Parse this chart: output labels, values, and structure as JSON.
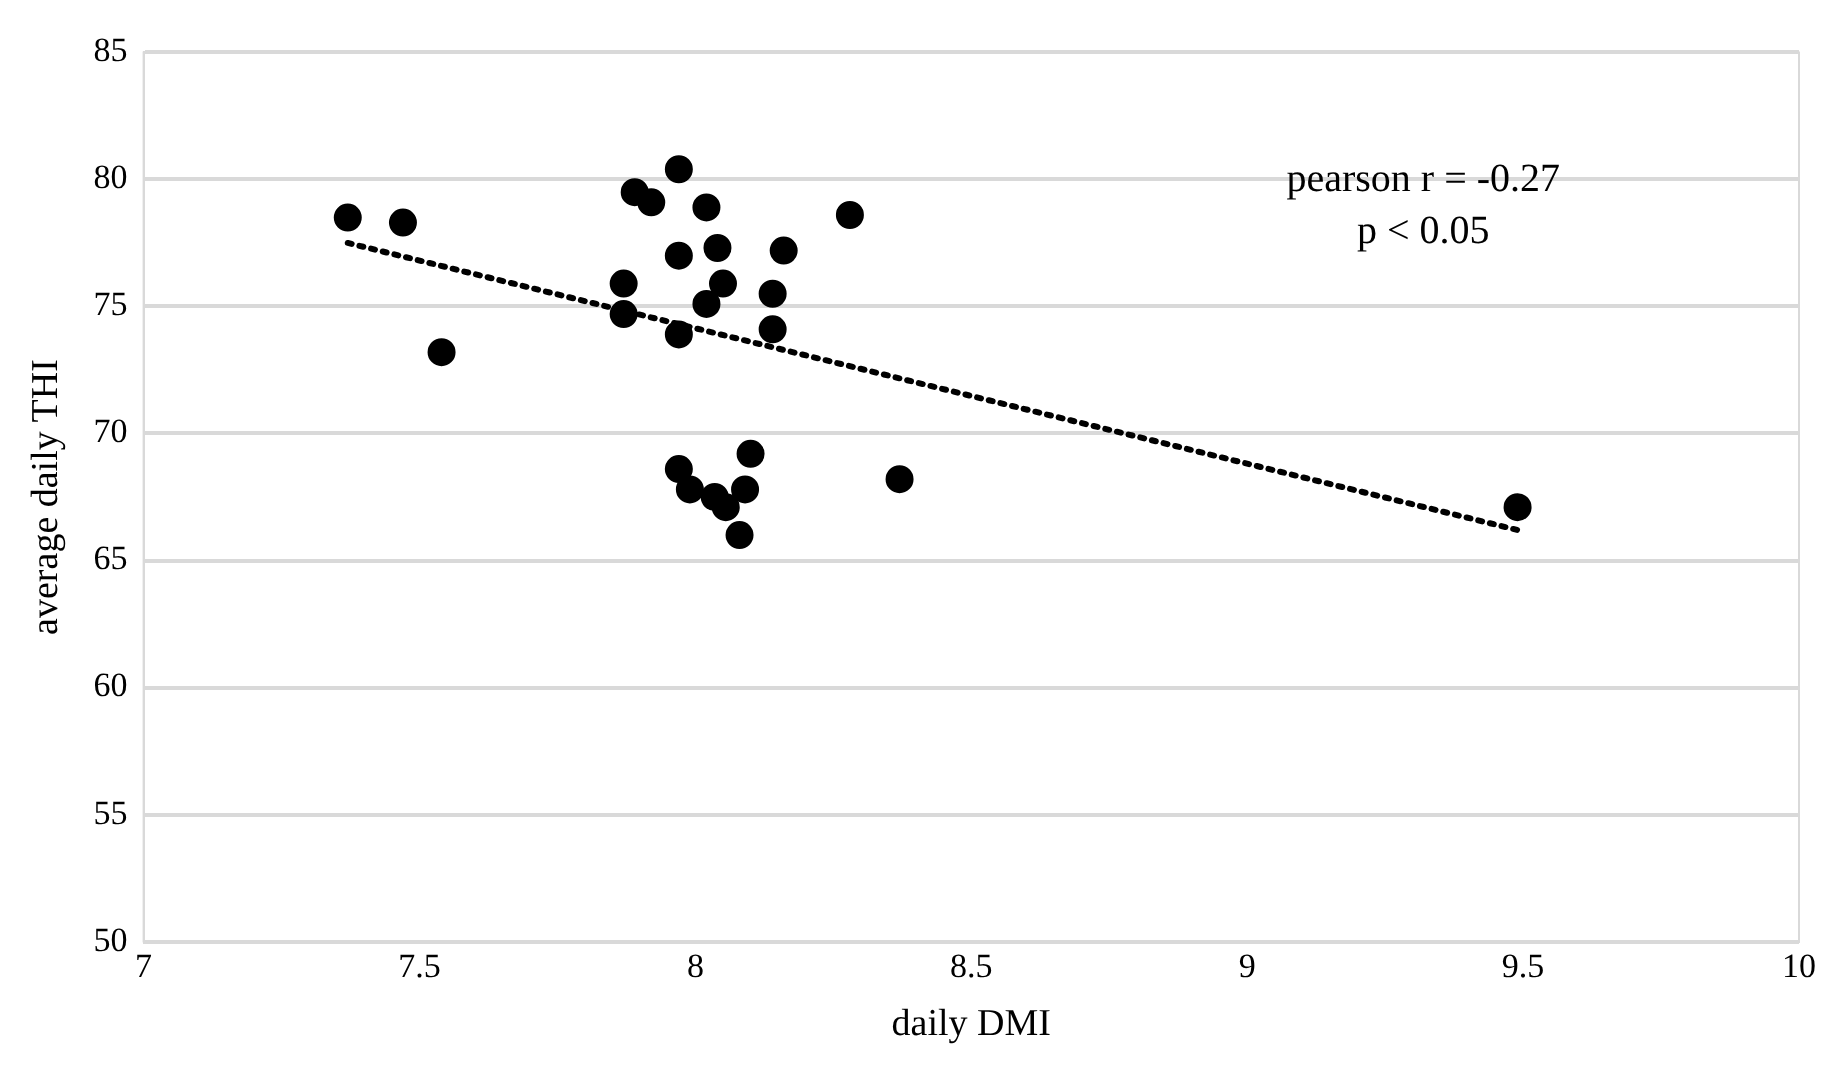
{
  "chart_data": {
    "type": "scatter",
    "xlabel": "daily DMI",
    "ylabel": "average daily THI",
    "annotations": [
      "pearson r = -0.27",
      "p < 0.05"
    ],
    "xlim": [
      7,
      10
    ],
    "xticks": [
      7,
      7.5,
      8,
      8.5,
      9,
      9.5,
      10
    ],
    "ylim": [
      50,
      85
    ],
    "yticks": [
      50,
      55,
      60,
      65,
      70,
      75,
      80,
      85
    ],
    "grid": "y",
    "legend": false,
    "marker": "circle",
    "series": [
      {
        "color": "#000000",
        "x": [
          7.37,
          7.47,
          7.54,
          7.89,
          7.92,
          7.97,
          8.02,
          7.97,
          8.04,
          8.16,
          8.28,
          7.87,
          8.05,
          8.14,
          8.02,
          7.87,
          7.97,
          8.14,
          7.97,
          7.99,
          8.1,
          8.09,
          8.035,
          8.055,
          8.08,
          8.37,
          9.49
        ],
        "values": [
          78.5,
          78.3,
          73.2,
          79.5,
          79.1,
          80.4,
          78.9,
          77.0,
          77.3,
          77.2,
          78.6,
          75.9,
          75.9,
          75.5,
          75.1,
          74.7,
          73.9,
          74.1,
          68.6,
          67.8,
          69.2,
          67.8,
          67.5,
          67.1,
          66.0,
          68.2,
          67.1
        ]
      },
      {
        "type": "line",
        "color": "#000000",
        "marker": "none",
        "line_style": "dotted",
        "x": [
          7.37,
          9.49
        ],
        "values": [
          77.5,
          66.2
        ]
      }
    ]
  }
}
